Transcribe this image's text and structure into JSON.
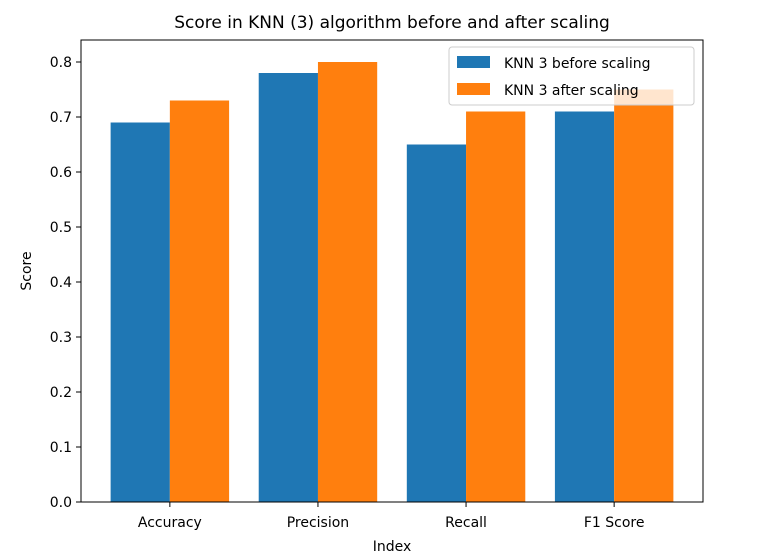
{
  "chart_data": {
    "type": "bar",
    "title": "Score in KNN (3) algorithm before and after scaling",
    "xlabel": "Index",
    "ylabel": "Score",
    "categories": [
      "Accuracy",
      "Precision",
      "Recall",
      "F1 Score"
    ],
    "series": [
      {
        "name": "KNN 3 before scaling",
        "color": "#1f77b4",
        "values": [
          0.69,
          0.78,
          0.65,
          0.71
        ]
      },
      {
        "name": "KNN 3 after scaling",
        "color": "#ff7f0e",
        "values": [
          0.73,
          0.8,
          0.71,
          0.75
        ]
      }
    ],
    "ylim": [
      0,
      0.84
    ],
    "yticks": [
      "0.0",
      "0.1",
      "0.2",
      "0.3",
      "0.4",
      "0.5",
      "0.6",
      "0.7",
      "0.8"
    ],
    "grid": false,
    "legend_position": "top-right"
  }
}
